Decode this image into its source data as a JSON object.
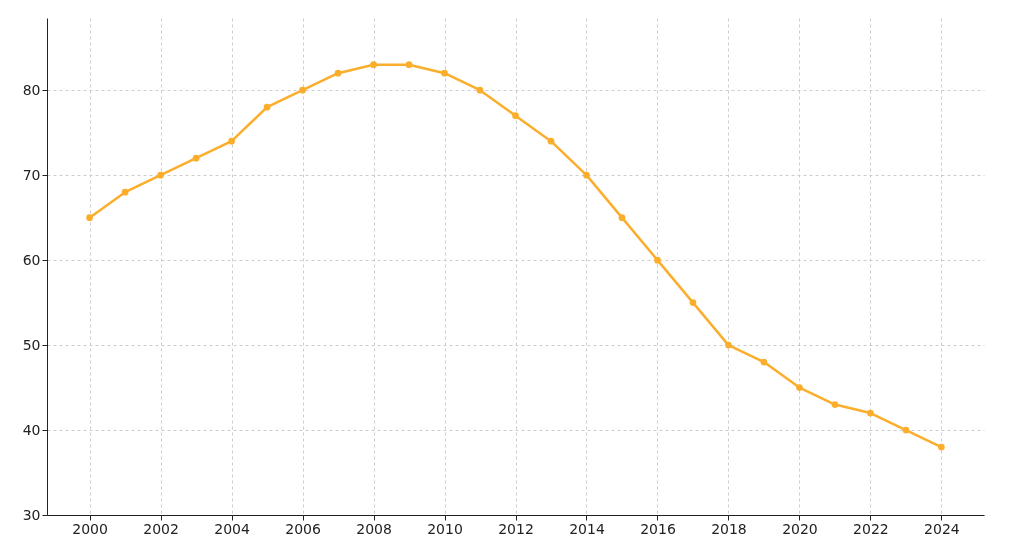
{
  "chart_data": {
    "type": "line",
    "x": [
      2000,
      2001,
      2002,
      2003,
      2004,
      2005,
      2006,
      2007,
      2008,
      2009,
      2010,
      2011,
      2012,
      2013,
      2014,
      2015,
      2016,
      2017,
      2018,
      2019,
      2020,
      2021,
      2022,
      2023,
      2024
    ],
    "series": [
      {
        "color": "#fbae2c",
        "values": [
          65,
          68,
          70,
          72,
          74,
          78,
          80,
          82,
          83,
          83,
          82,
          80,
          77,
          74,
          70,
          65,
          60,
          55,
          50,
          48,
          45,
          43,
          42,
          40,
          38
        ]
      }
    ],
    "xlim": [
      1998.8,
      2025.2
    ],
    "ylim": [
      30,
      88.5
    ],
    "xticks": [
      2000,
      2002,
      2004,
      2006,
      2008,
      2010,
      2012,
      2014,
      2016,
      2018,
      2020,
      2022,
      2024
    ],
    "yticks": [
      30,
      40,
      50,
      60,
      70,
      80
    ],
    "grid": true,
    "marker": "circle",
    "line_style": "solid"
  }
}
